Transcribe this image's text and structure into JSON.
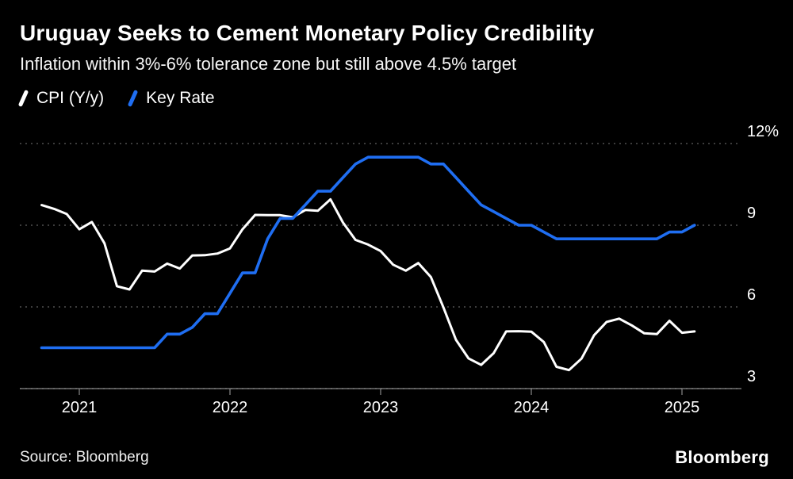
{
  "header": {
    "title": "Uruguay Seeks to Cement Monetary Policy Credibility",
    "subtitle": "Inflation within 3%-6% tolerance zone but still above 4.5% target"
  },
  "legend": [
    {
      "label": "CPI (Y/y)",
      "color": "#ffffff"
    },
    {
      "label": "Key Rate",
      "color": "#1f6ef2"
    }
  ],
  "footer": {
    "source": "Source: Bloomberg",
    "brand": "Bloomberg"
  },
  "chart_data": {
    "type": "line",
    "title": "Uruguay Seeks to Cement Monetary Policy Credibility",
    "subtitle": "Inflation within 3%-6% tolerance zone but still above 4.5% target",
    "x_unit": "month",
    "x_start": "2020-10",
    "x_end": "2025-02",
    "xticks": [
      "2021",
      "2022",
      "2023",
      "2024",
      "2025"
    ],
    "yticks": [
      {
        "value": 12,
        "label": "12%"
      },
      {
        "value": 9,
        "label": "9"
      },
      {
        "value": 6,
        "label": "6"
      },
      {
        "value": 3,
        "label": "3"
      }
    ],
    "ylim": [
      3,
      12
    ],
    "grid": "horizontal-dotted",
    "legend_position": "top-left",
    "series": [
      {
        "name": "CPI (Y/y)",
        "color": "#ffffff",
        "values": [
          9.74,
          9.6,
          9.41,
          8.85,
          9.12,
          8.34,
          6.76,
          6.64,
          7.33,
          7.3,
          7.59,
          7.41,
          7.89,
          7.9,
          7.96,
          8.15,
          8.85,
          9.38,
          9.37,
          9.37,
          9.29,
          9.56,
          9.53,
          9.95,
          9.1,
          8.46,
          8.29,
          8.05,
          7.55,
          7.33,
          7.61,
          7.1,
          5.98,
          4.79,
          4.11,
          3.87,
          4.3,
          5.1,
          5.11,
          5.09,
          4.71,
          3.8,
          3.68,
          4.1,
          4.96,
          5.45,
          5.57,
          5.32,
          5.03,
          5.0,
          5.49,
          5.05,
          5.1
        ]
      },
      {
        "name": "Key Rate",
        "color": "#1f6ef2",
        "values": [
          4.5,
          4.5,
          4.5,
          4.5,
          4.5,
          4.5,
          4.5,
          4.5,
          4.5,
          4.5,
          5.0,
          5.0,
          5.25,
          5.75,
          5.75,
          6.5,
          7.25,
          7.25,
          8.5,
          9.25,
          9.25,
          9.75,
          10.25,
          10.25,
          10.75,
          11.25,
          11.5,
          11.5,
          11.5,
          11.5,
          11.5,
          11.25,
          11.25,
          10.75,
          10.25,
          9.75,
          9.5,
          9.25,
          9.0,
          9.0,
          8.75,
          8.5,
          8.5,
          8.5,
          8.5,
          8.5,
          8.5,
          8.5,
          8.5,
          8.5,
          8.75,
          8.75,
          9.0
        ]
      }
    ]
  }
}
